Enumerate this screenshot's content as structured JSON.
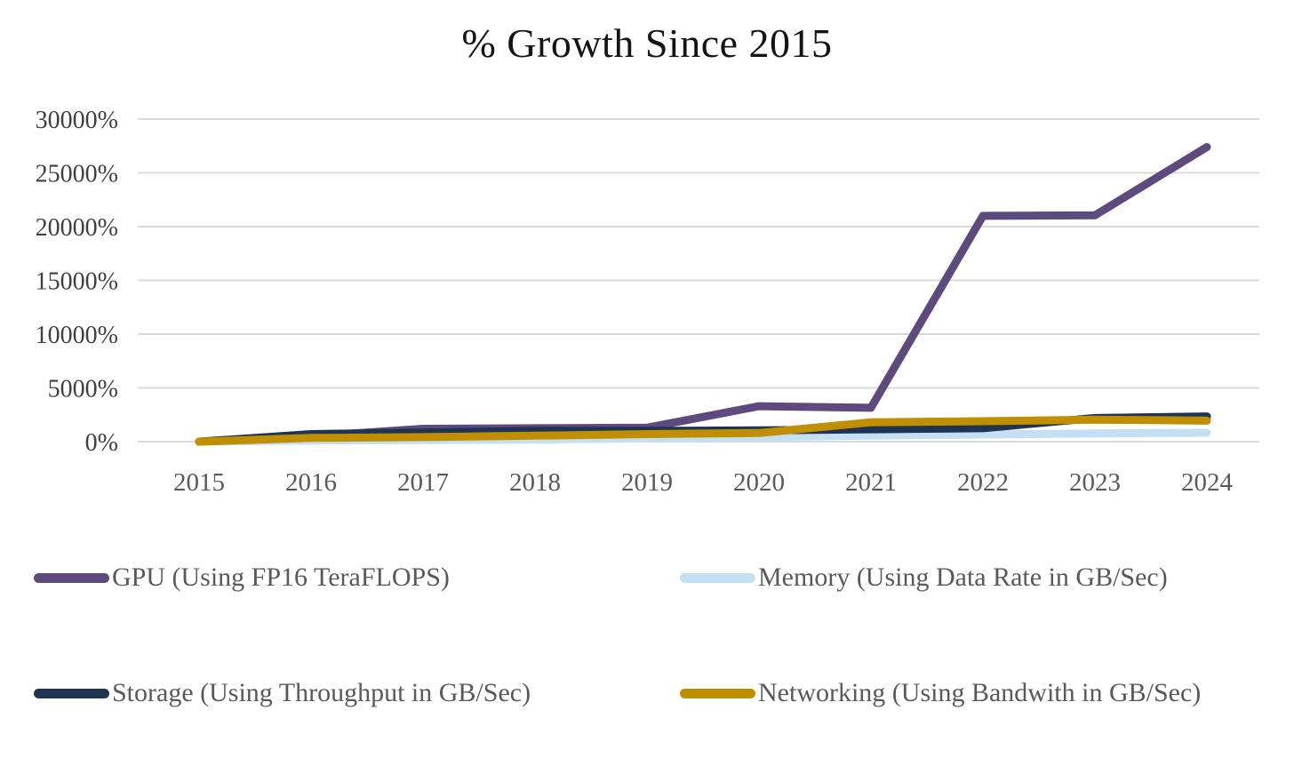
{
  "title": "% Growth Since 2015",
  "chart_data": {
    "type": "line",
    "title": "% Growth Since 2015",
    "categories": [
      "2015",
      "2016",
      "2017",
      "2018",
      "2019",
      "2020",
      "2021",
      "2022",
      "2023",
      "2024"
    ],
    "series": [
      {
        "id": "gpu",
        "name": "GPU (Using FP16 TeraFLOPS)",
        "color": "#5F4A7D",
        "values": [
          0,
          500,
          1200,
          1250,
          1300,
          3300,
          3150,
          21000,
          21050,
          27400
        ]
      },
      {
        "id": "memory",
        "name": "Memory (Using Data Rate in GB/Sec)",
        "color": "#C3DFF3",
        "values": [
          0,
          100,
          150,
          200,
          300,
          420,
          560,
          660,
          760,
          830
        ]
      },
      {
        "id": "storage",
        "name": "Storage (Using Throughput in GB/Sec)",
        "color": "#1F3353",
        "values": [
          0,
          700,
          850,
          1000,
          1000,
          1050,
          1150,
          1250,
          2200,
          2350
        ]
      },
      {
        "id": "networking",
        "name": "Networking (Using Bandwith in GB/Sec)",
        "color": "#BF8F00",
        "values": [
          0,
          350,
          420,
          550,
          700,
          800,
          1800,
          1900,
          2050,
          1950
        ]
      }
    ],
    "xlabel": "",
    "ylabel": "",
    "ylim": [
      0,
      30000
    ],
    "ytick_step": 5000,
    "ytick_labels": [
      "0%",
      "5000%",
      "10000%",
      "15000%",
      "20000%",
      "25000%",
      "30000%"
    ],
    "grid": true,
    "legend_position": "bottom",
    "colors": {
      "grid": "#D9D9D9",
      "x_tick": "#595959",
      "y_tick": "#3F3F3F",
      "title": "#141414",
      "legend_text": "#595959",
      "background": "#FFFFFF"
    }
  }
}
